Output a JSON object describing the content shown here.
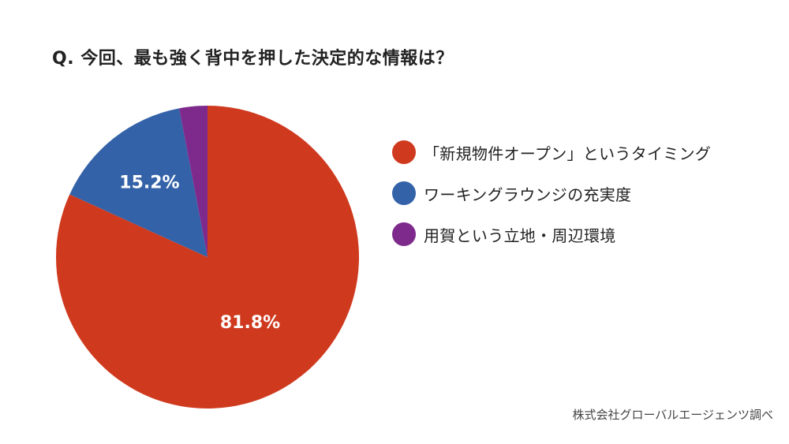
{
  "question": "Q. 今回、最も強く背中を押した決定的な情報は？",
  "source": "株式会社グローバルエージェンツ調べ",
  "chart_data": {
    "type": "pie",
    "categories": [
      "「新規物件オープン」というタイミング",
      "ワーキングラウンジの充実度",
      "用賀という立地・周辺環境"
    ],
    "values": [
      81.8,
      15.2,
      3.0
    ],
    "data_labels": [
      "81.8%",
      "15.2%",
      ""
    ],
    "colors": [
      "#cf3a1f",
      "#3462a8",
      "#7e2a8c"
    ],
    "legend_position": "right"
  }
}
